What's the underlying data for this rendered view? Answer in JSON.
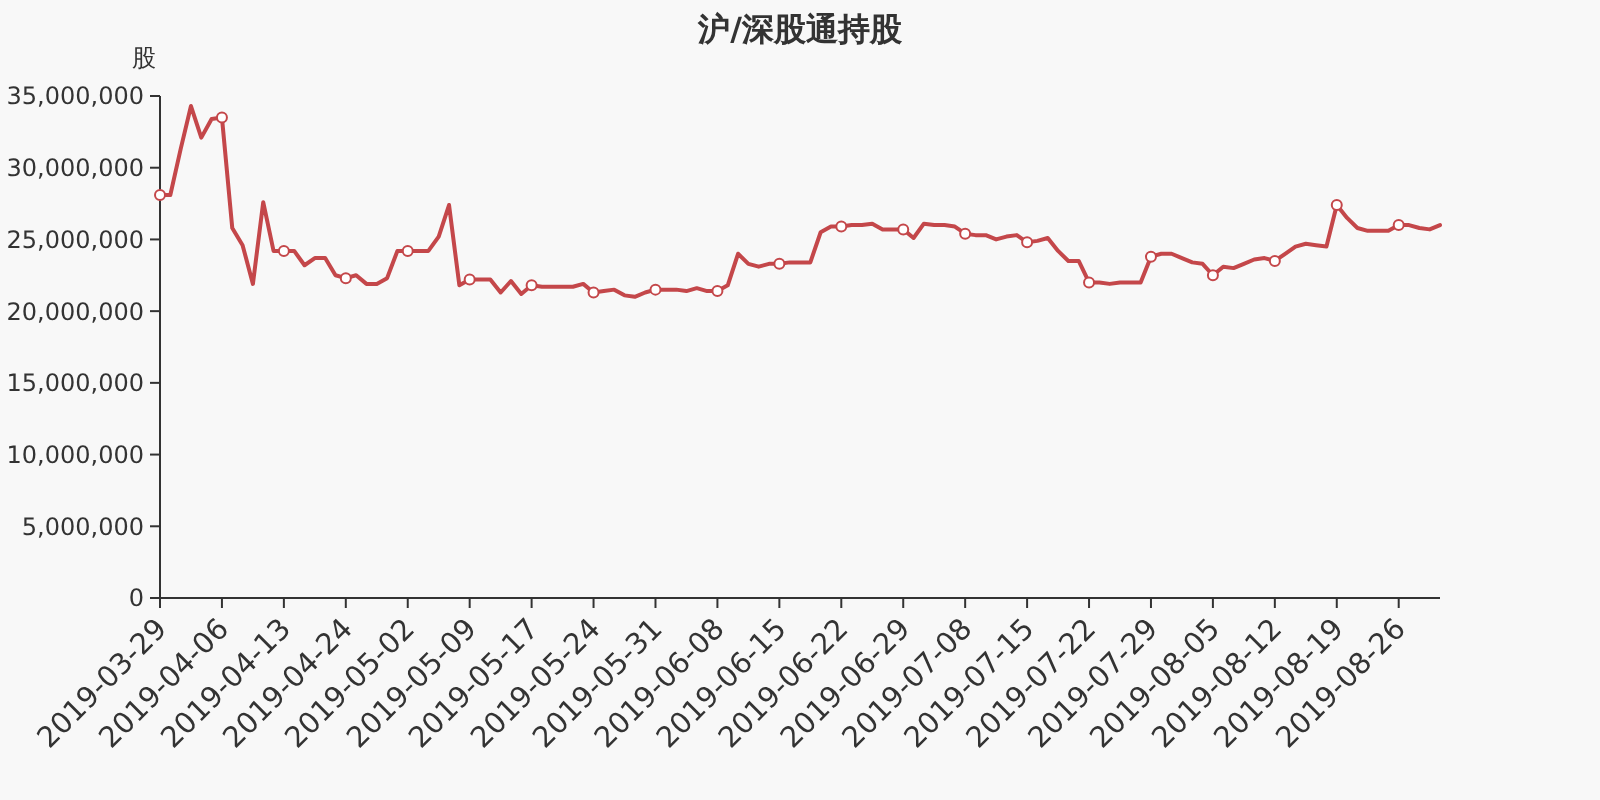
{
  "chart_data": {
    "type": "line",
    "title": "沪/深股通持股",
    "ylabel": "股",
    "categories": [
      "2019-03-29",
      null,
      null,
      null,
      null,
      null,
      "2019-04-06",
      null,
      null,
      null,
      null,
      null,
      "2019-04-13",
      null,
      null,
      null,
      null,
      null,
      "2019-04-24",
      null,
      null,
      null,
      null,
      null,
      "2019-05-02",
      null,
      null,
      null,
      null,
      null,
      "2019-05-09",
      null,
      null,
      null,
      null,
      null,
      "2019-05-17",
      null,
      null,
      null,
      null,
      null,
      "2019-05-24",
      null,
      null,
      null,
      null,
      null,
      "2019-05-31",
      null,
      null,
      null,
      null,
      null,
      "2019-06-08",
      null,
      null,
      null,
      null,
      null,
      "2019-06-15",
      null,
      null,
      null,
      null,
      null,
      "2019-06-22",
      null,
      null,
      null,
      null,
      null,
      "2019-06-29",
      null,
      null,
      null,
      null,
      null,
      "2019-07-08",
      null,
      null,
      null,
      null,
      null,
      "2019-07-15",
      null,
      null,
      null,
      null,
      null,
      "2019-07-22",
      null,
      null,
      null,
      null,
      null,
      "2019-07-29",
      null,
      null,
      null,
      null,
      null,
      "2019-08-05",
      null,
      null,
      null,
      null,
      null,
      "2019-08-12",
      null,
      null,
      null,
      null,
      null,
      "2019-08-19",
      null,
      null,
      null,
      null,
      null,
      "2019-08-26",
      null,
      null,
      null,
      null
    ],
    "series": [
      {
        "color": "#c4474a",
        "values": [
          28100000,
          28100000,
          31300000,
          34300000,
          32100000,
          33400000,
          33500000,
          25800000,
          24600000,
          21900000,
          27600000,
          24200000,
          24200000,
          24200000,
          23200000,
          23700000,
          23700000,
          22500000,
          22300000,
          22500000,
          21900000,
          21900000,
          22300000,
          24200000,
          24200000,
          24200000,
          24200000,
          25200000,
          27400000,
          21800000,
          22200000,
          22200000,
          22200000,
          21300000,
          22100000,
          21200000,
          21800000,
          21700000,
          21700000,
          21700000,
          21700000,
          21900000,
          21300000,
          21400000,
          21500000,
          21100000,
          21000000,
          21300000,
          21500000,
          21500000,
          21500000,
          21400000,
          21600000,
          21400000,
          21400000,
          21800000,
          24000000,
          23300000,
          23100000,
          23300000,
          23300000,
          23400000,
          23400000,
          23400000,
          25500000,
          25900000,
          25900000,
          26000000,
          26000000,
          26100000,
          25700000,
          25700000,
          25700000,
          25100000,
          26100000,
          26000000,
          26000000,
          25900000,
          25400000,
          25300000,
          25300000,
          25000000,
          25200000,
          25300000,
          24800000,
          24900000,
          25100000,
          24200000,
          23500000,
          23500000,
          22000000,
          22000000,
          21900000,
          22000000,
          22000000,
          22000000,
          23800000,
          24000000,
          24000000,
          23700000,
          23400000,
          23300000,
          22500000,
          23100000,
          23000000,
          23300000,
          23600000,
          23700000,
          23500000,
          24000000,
          24500000,
          24700000,
          24600000,
          24500000,
          27400000,
          26500000,
          25800000,
          25600000,
          25600000,
          25600000,
          26000000,
          26000000,
          25800000,
          25700000,
          26000000
        ]
      },
      {
        "type": "scatter",
        "color": "#ffffff",
        "values": [
          28100000,
          null,
          null,
          null,
          null,
          null,
          33500000,
          null,
          null,
          null,
          null,
          null,
          24200000,
          null,
          null,
          null,
          null,
          null,
          22300000,
          null,
          null,
          null,
          null,
          null,
          24200000,
          null,
          null,
          null,
          null,
          null,
          22200000,
          null,
          null,
          null,
          null,
          null,
          21800000,
          null,
          null,
          null,
          null,
          null,
          21300000,
          null,
          null,
          null,
          null,
          null,
          21500000,
          null,
          null,
          null,
          null,
          null,
          21400000,
          null,
          null,
          null,
          null,
          null,
          23300000,
          null,
          null,
          null,
          null,
          null,
          25900000,
          null,
          null,
          null,
          null,
          null,
          25700000,
          null,
          null,
          null,
          null,
          null,
          25400000,
          null,
          null,
          null,
          null,
          null,
          24800000,
          null,
          null,
          null,
          null,
          null,
          22000000,
          null,
          null,
          null,
          null,
          null,
          23800000,
          null,
          null,
          null,
          null,
          null,
          22500000,
          null,
          null,
          null,
          null,
          null,
          23500000,
          null,
          null,
          null,
          null,
          null,
          27400000,
          null,
          null,
          null,
          null,
          null,
          26000000,
          null,
          null,
          null,
          null
        ]
      }
    ],
    "ylim": [
      0,
      35000000
    ],
    "yticks": [
      0,
      {
        "value": 5000000,
        "label": "5,000,000"
      },
      {
        "value": 10000000,
        "label": "10,000,000"
      },
      {
        "value": 15000000,
        "label": "15,000,000"
      },
      {
        "value": 20000000,
        "label": "20,000,000"
      },
      {
        "value": 25000000,
        "label": "25,000,000"
      },
      {
        "value": 30000000,
        "label": "30,000,000"
      },
      {
        "value": 35000000,
        "label": "35,000,000"
      }
    ],
    "line_style": "solid",
    "grid": false
  }
}
